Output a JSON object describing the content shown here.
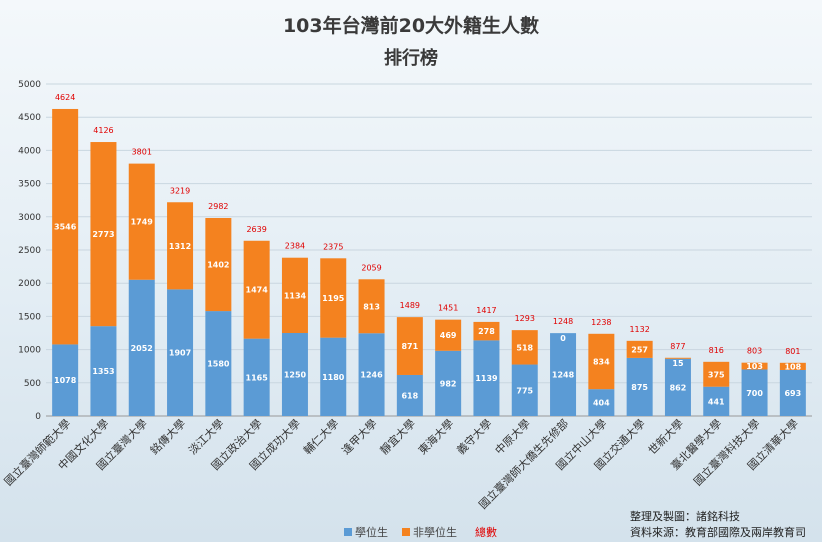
{
  "title": "103年台灣前20大外籍生人數",
  "subtitle": "排行榜",
  "credits": {
    "producer": "整理及製圖：諸銘科技",
    "source": "資料來源：教育部國際及兩岸教育司"
  },
  "colors": {
    "degree": "#5b9bd5",
    "non_degree": "#f4821f",
    "total_label": "#e00000"
  },
  "chart_data": {
    "type": "bar",
    "stacked": true,
    "title": "103年台灣前20大外籍生人數",
    "subtitle": "排行榜",
    "xlabel": "",
    "ylabel": "",
    "ylim": [
      0,
      5000
    ],
    "yticks": [
      0,
      500,
      1000,
      1500,
      2000,
      2500,
      3000,
      3500,
      4000,
      4500,
      5000
    ],
    "grid": true,
    "legend": "bottom",
    "categories": [
      "國立臺灣師範大學",
      "中國文化大學",
      "國立臺灣大學",
      "銘傳大學",
      "淡江大學",
      "國立政治大學",
      "國立成功大學",
      "輔仁大學",
      "逢甲大學",
      "靜宜大學",
      "東海大學",
      "義守大學",
      "中原大學",
      "國立臺灣師大僑生先修部",
      "國立中山大學",
      "國立交通大學",
      "世新大學",
      "臺北醫學大學",
      "國立臺灣科技大學",
      "國立清華大學"
    ],
    "series": [
      {
        "name": "學位生",
        "values": [
          1078,
          1353,
          2052,
          1907,
          1580,
          1165,
          1250,
          1180,
          1246,
          618,
          982,
          1139,
          775,
          1248,
          404,
          875,
          862,
          441,
          700,
          693
        ]
      },
      {
        "name": "非學位生",
        "values": [
          3546,
          2773,
          1749,
          1312,
          1402,
          1474,
          1134,
          1195,
          813,
          871,
          469,
          278,
          518,
          0,
          834,
          257,
          15,
          375,
          103,
          108
        ]
      }
    ],
    "totals_name": "總數",
    "totals": [
      4624,
      4126,
      3801,
      3219,
      2982,
      2639,
      2384,
      2375,
      2059,
      1489,
      1451,
      1417,
      1293,
      1248,
      1238,
      1132,
      877,
      816,
      803,
      801
    ]
  }
}
